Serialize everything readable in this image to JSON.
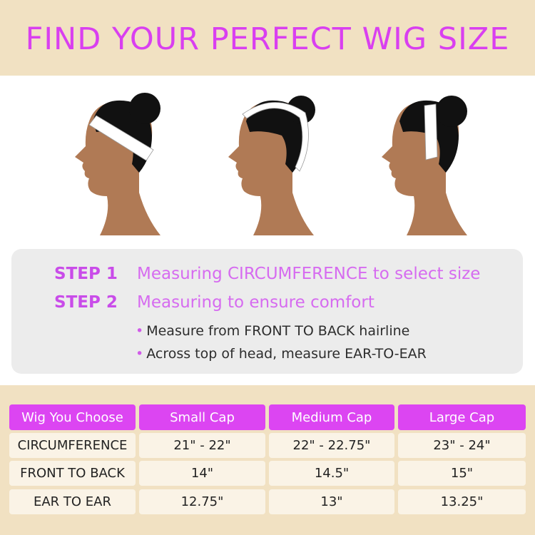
{
  "title": "FIND YOUR PERFECT WIG SIZE",
  "illustrations": [
    {
      "icon": "head-circumference-measure-icon"
    },
    {
      "icon": "head-ear-to-ear-measure-icon"
    },
    {
      "icon": "head-front-to-back-measure-icon"
    }
  ],
  "steps": [
    {
      "label": "STEP 1",
      "text": "Measuring CIRCUMFERENCE to select size"
    },
    {
      "label": "STEP 2",
      "text": "Measuring to ensure comfort"
    }
  ],
  "bullets": [
    "Measure from FRONT TO BACK hairline",
    "Across top of head, measure EAR-TO-EAR"
  ],
  "table": {
    "headers": [
      "Wig You Choose",
      "Small Cap",
      "Medium Cap",
      "Large Cap"
    ],
    "rows": [
      [
        "CIRCUMFERENCE",
        "21\" - 22\"",
        "22\" - 22.75\"",
        "23\" - 24\""
      ],
      [
        "FRONT TO BACK",
        "14\"",
        "14.5\"",
        "15\""
      ],
      [
        "EAR TO EAR",
        "12.75\"",
        "13\"",
        "13.25\""
      ]
    ]
  },
  "colors": {
    "accent": "#dc45f2",
    "banner": "#f1e1c2",
    "cell": "#faf3e6",
    "panel": "#ececec",
    "skin": "#b07a55"
  }
}
